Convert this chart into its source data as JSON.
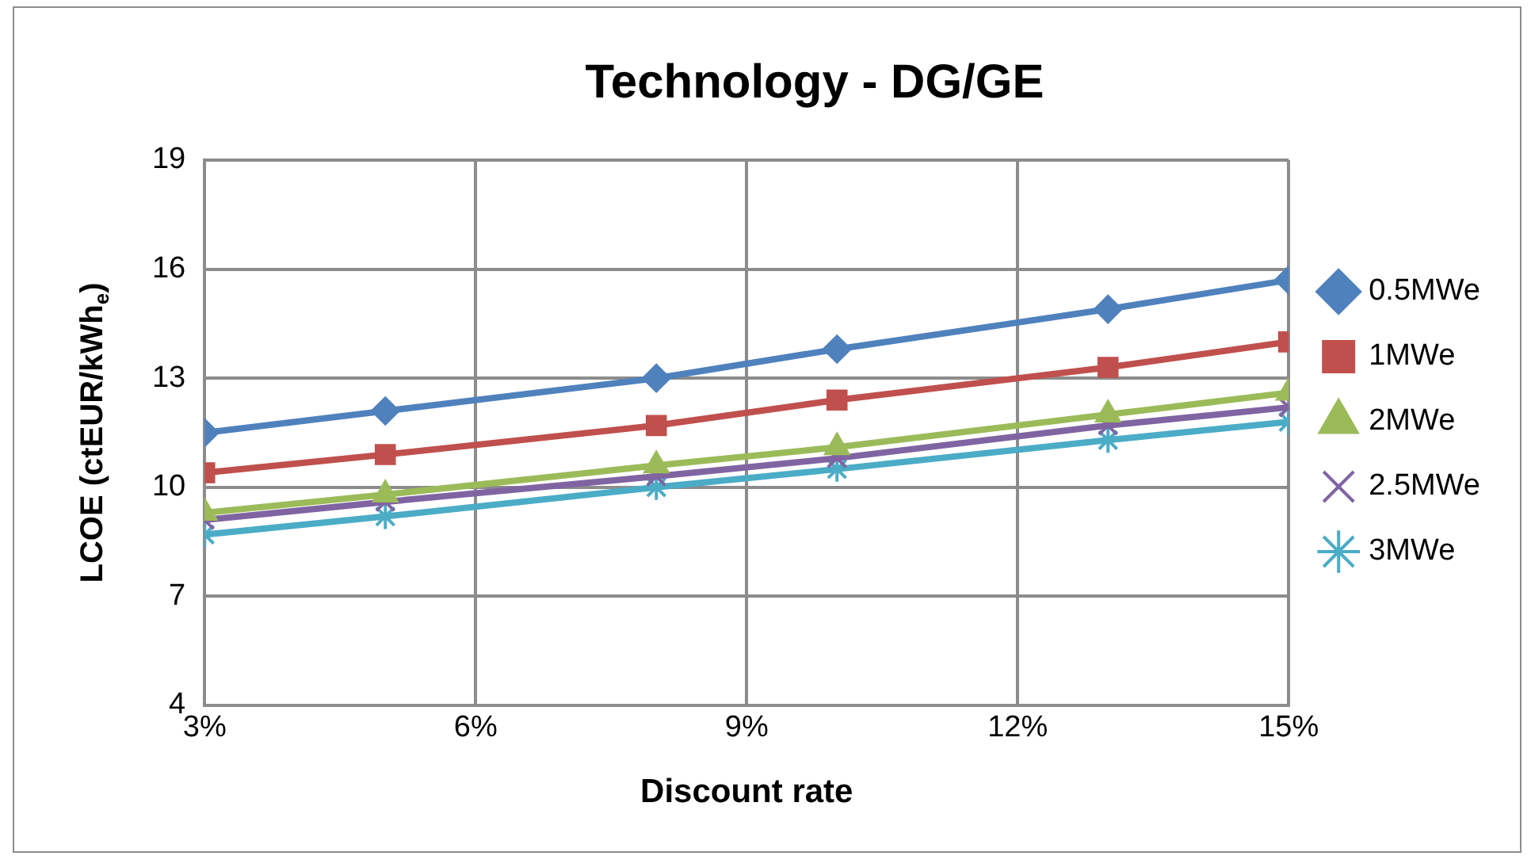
{
  "chart_data": {
    "type": "line",
    "title": "Technology - DG/GE",
    "xlabel": "Discount rate",
    "ylabel": "LCOE (ctEUR/kWh$_{e}$)",
    "x": [
      3,
      5,
      8,
      10,
      13,
      15
    ],
    "series": [
      {
        "name": "0.5MWe",
        "color": "#4f81bd",
        "marker": "diamond",
        "values": [
          11.5,
          12.1,
          13.0,
          13.8,
          14.9,
          15.7
        ]
      },
      {
        "name": "1MWe",
        "color": "#c0504d",
        "marker": "square",
        "values": [
          10.4,
          10.9,
          11.7,
          12.4,
          13.3,
          14.0
        ]
      },
      {
        "name": "2MWe",
        "color": "#9bbb59",
        "marker": "triangle",
        "values": [
          9.3,
          9.8,
          10.6,
          11.1,
          12.0,
          12.6
        ]
      },
      {
        "name": "2.5MWe",
        "color": "#8064a2",
        "marker": "cross",
        "values": [
          9.1,
          9.6,
          10.3,
          10.8,
          11.7,
          12.2
        ]
      },
      {
        "name": "3MWe",
        "color": "#4bacc6",
        "marker": "cross",
        "values": [
          8.7,
          9.2,
          10.0,
          10.5,
          11.3,
          11.8
        ]
      }
    ],
    "xlim": [
      3,
      15
    ],
    "xticks": [
      {
        "value": 3,
        "label": "3%"
      },
      {
        "value": 6,
        "label": "6%"
      },
      {
        "value": 9,
        "label": "9%"
      },
      {
        "value": 12,
        "label": "12%"
      },
      {
        "value": 15,
        "label": "15%"
      }
    ],
    "ylim": [
      4,
      19
    ],
    "yticks": [
      4,
      7,
      10,
      13,
      16,
      19
    ],
    "grid": true,
    "legend": "right",
    "line_style": "solid"
  }
}
